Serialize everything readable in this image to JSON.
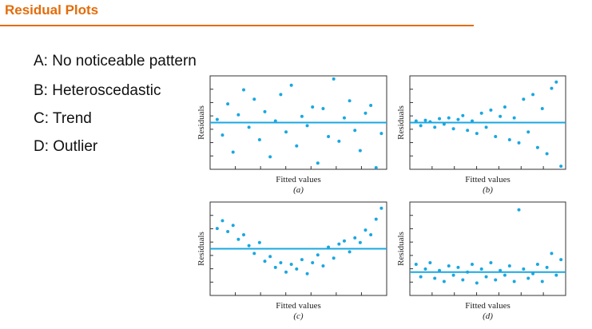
{
  "slide": {
    "title": "Residual Plots",
    "items": [
      "A: No noticeable pattern",
      "B: Heteroscedastic",
      "C: Trend",
      "D: Outlier"
    ]
  },
  "chart_data": [
    {
      "type": "scatter",
      "ylabel": "Residuals",
      "xlabel": "Fitted values",
      "caption": "(a)",
      "color": "#1aa7e0",
      "hline": 0,
      "xlim": [
        0,
        10
      ],
      "ylim": [
        -3,
        3
      ],
      "x": [
        0.4,
        0.7,
        1.0,
        1.3,
        1.6,
        1.9,
        2.2,
        2.5,
        2.8,
        3.1,
        3.4,
        3.7,
        4.0,
        4.3,
        4.6,
        4.9,
        5.2,
        5.5,
        5.8,
        6.1,
        6.4,
        6.7,
        7.0,
        7.3,
        7.6,
        7.9,
        8.2,
        8.5,
        8.8,
        9.1,
        9.4,
        9.7
      ],
      "values": [
        0.2,
        -0.8,
        1.2,
        -1.9,
        0.5,
        2.1,
        -0.3,
        1.5,
        -1.1,
        0.7,
        -2.2,
        0.1,
        1.8,
        -0.6,
        2.4,
        -1.5,
        0.4,
        -0.2,
        1.0,
        -2.6,
        0.9,
        -0.9,
        2.8,
        -1.2,
        0.3,
        1.4,
        -0.5,
        -1.8,
        0.6,
        1.1,
        -2.9,
        -0.7
      ]
    },
    {
      "type": "scatter",
      "ylabel": "Residuals",
      "xlabel": "Fitted values",
      "caption": "(b)",
      "color": "#1aa7e0",
      "hline": 0,
      "xlim": [
        0,
        10
      ],
      "ylim": [
        -3,
        3
      ],
      "x": [
        0.4,
        0.7,
        1.0,
        1.3,
        1.6,
        1.9,
        2.2,
        2.5,
        2.8,
        3.1,
        3.4,
        3.7,
        4.0,
        4.3,
        4.6,
        4.9,
        5.2,
        5.5,
        5.8,
        6.1,
        6.4,
        6.7,
        7.0,
        7.3,
        7.6,
        7.9,
        8.2,
        8.5,
        8.8,
        9.1,
        9.4,
        9.7
      ],
      "values": [
        0.1,
        -0.2,
        0.15,
        0.05,
        -0.3,
        0.25,
        -0.1,
        0.3,
        -0.4,
        0.2,
        0.45,
        -0.5,
        0.1,
        -0.7,
        0.6,
        -0.3,
        0.8,
        -0.9,
        0.4,
        1.0,
        -1.1,
        0.3,
        -1.3,
        1.5,
        -0.6,
        1.8,
        -1.6,
        0.9,
        -2.0,
        2.2,
        2.6,
        -2.8
      ]
    },
    {
      "type": "scatter",
      "ylabel": "Residuals",
      "xlabel": "Fitted values",
      "caption": "(c)",
      "color": "#1aa7e0",
      "hline": 0,
      "xlim": [
        0,
        10
      ],
      "ylim": [
        -3,
        3
      ],
      "x": [
        0.4,
        0.7,
        1.0,
        1.3,
        1.6,
        1.9,
        2.2,
        2.5,
        2.8,
        3.1,
        3.4,
        3.7,
        4.0,
        4.3,
        4.6,
        4.9,
        5.2,
        5.5,
        5.8,
        6.1,
        6.4,
        6.7,
        7.0,
        7.3,
        7.6,
        7.9,
        8.2,
        8.5,
        8.8,
        9.1,
        9.4,
        9.7
      ],
      "values": [
        1.3,
        1.8,
        1.1,
        1.5,
        0.6,
        0.9,
        0.2,
        -0.3,
        0.4,
        -0.8,
        -0.5,
        -1.2,
        -0.9,
        -1.5,
        -1.0,
        -1.3,
        -0.7,
        -1.6,
        -0.9,
        -0.4,
        -1.1,
        0.1,
        -0.6,
        0.3,
        0.5,
        -0.2,
        0.7,
        0.4,
        1.2,
        0.9,
        1.9,
        2.6
      ]
    },
    {
      "type": "scatter",
      "ylabel": "Residuals",
      "xlabel": "Fitted values",
      "caption": "(d)",
      "color": "#1aa7e0",
      "hline": 0,
      "xlim": [
        0,
        10
      ],
      "ylim": [
        -1.5,
        4.5
      ],
      "x": [
        0.4,
        0.7,
        1.0,
        1.3,
        1.6,
        1.9,
        2.2,
        2.5,
        2.8,
        3.1,
        3.4,
        3.7,
        4.0,
        4.3,
        4.6,
        4.9,
        5.2,
        5.5,
        5.8,
        6.1,
        6.4,
        6.7,
        7.0,
        7.3,
        7.6,
        7.9,
        8.2,
        8.5,
        8.8,
        9.1,
        9.4,
        9.7
      ],
      "values": [
        0.5,
        -0.3,
        0.2,
        0.6,
        -0.4,
        0.1,
        -0.6,
        0.4,
        -0.2,
        0.3,
        -0.5,
        0.0,
        0.5,
        -0.7,
        0.2,
        -0.3,
        0.6,
        -0.5,
        0.1,
        -0.2,
        0.4,
        -0.6,
        4.0,
        0.2,
        -0.4,
        -0.1,
        0.5,
        -0.6,
        0.3,
        1.2,
        -0.2,
        0.8
      ]
    }
  ]
}
